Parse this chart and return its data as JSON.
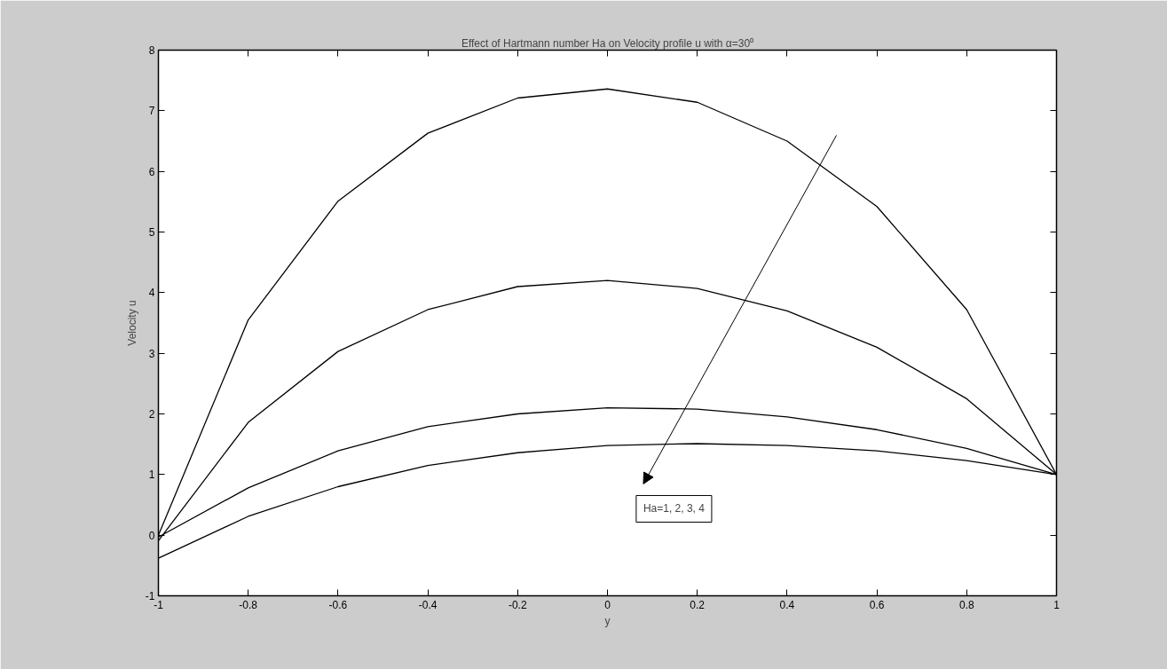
{
  "chart_data": {
    "type": "line",
    "title": "Effect of Hartmann number Ha on Velocity profile u with α=30⁰",
    "xlabel": "y",
    "ylabel": "Velocity u",
    "x": [
      -1,
      -0.8,
      -0.6,
      -0.4,
      -0.2,
      0,
      0.2,
      0.4,
      0.6,
      0.8,
      1
    ],
    "series": [
      {
        "color": "#000000",
        "values": [
          0,
          3.55,
          5.51,
          6.63,
          7.21,
          7.36,
          7.14,
          6.5,
          5.42,
          3.72,
          1.0
        ]
      },
      {
        "color": "#000000",
        "values": [
          -0.09,
          1.86,
          3.03,
          3.72,
          4.1,
          4.2,
          4.07,
          3.7,
          3.1,
          2.25,
          1.0
        ]
      },
      {
        "color": "#000000",
        "values": [
          -0.03,
          0.78,
          1.39,
          1.79,
          2.0,
          2.1,
          2.08,
          1.95,
          1.74,
          1.43,
          1.0
        ]
      },
      {
        "color": "#000000",
        "values": [
          -0.38,
          0.31,
          0.8,
          1.15,
          1.36,
          1.48,
          1.51,
          1.48,
          1.39,
          1.23,
          1.0
        ]
      }
    ],
    "annotations": [
      "Ha=1, 2, 3, 4"
    ],
    "xlim": [
      -1,
      1
    ],
    "ylim": [
      -1,
      8
    ],
    "xticks": [
      -1,
      -0.8,
      -0.6,
      -0.4,
      -0.2,
      0,
      0.2,
      0.4,
      0.6,
      0.8,
      1
    ],
    "yticks": [
      -1,
      0,
      1,
      2,
      3,
      4,
      5,
      6,
      7,
      8
    ],
    "grid": false,
    "marker": "none",
    "line_style": "solid"
  }
}
